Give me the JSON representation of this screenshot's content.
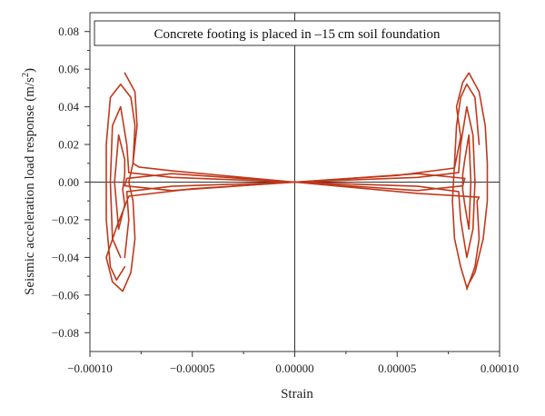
{
  "chart_data": {
    "type": "line",
    "title": "Concrete footing is placed in –15 cm soil foundation",
    "xlabel": "Strain",
    "ylabel_main": "Seismic acceleration load response (m/s",
    "ylabel_exp": "2",
    "ylabel_close": ")",
    "xlim": [
      -0.0001,
      0.0001
    ],
    "ylim": [
      -0.09,
      0.09
    ],
    "x_ticks": [
      -0.0001,
      -5e-05,
      0,
      5e-05,
      0.0001
    ],
    "x_tick_labels": [
      "−0.00010",
      "−0.00005",
      "0.00000",
      "0.00005",
      "0.00010"
    ],
    "y_ticks": [
      0.08,
      0.06,
      0.04,
      0.02,
      0.0,
      -0.02,
      -0.04,
      -0.06,
      -0.08
    ],
    "y_tick_labels": [
      "0.08",
      "0.06",
      "0.04",
      "0.02",
      "0.00",
      "−0.02",
      "−0.04",
      "−0.06",
      "−0.08"
    ],
    "grid": false,
    "zero_lines": true,
    "line_color": "#c0391b",
    "series": [
      {
        "values": [
          [
            0,
            0
          ],
          [
            -5e-05,
            -0.0035
          ],
          [
            -8.1e-05,
            -0.0075
          ],
          [
            -8.7e-05,
            -0.024
          ],
          [
            -9.2e-05,
            -0.04
          ],
          [
            -8.9e-05,
            -0.053
          ],
          [
            -8.4e-05,
            -0.058
          ],
          [
            -8e-05,
            -0.048
          ],
          [
            -7.8e-05,
            -0.03
          ],
          [
            -7.9e-05,
            -0.01
          ],
          [
            -8.1e-05,
            0
          ],
          [
            -7.9e-05,
            0.01
          ],
          [
            -7.8e-05,
            0.03
          ],
          [
            -8e-05,
            0.045
          ],
          [
            -8.5e-05,
            0.052
          ],
          [
            -9e-05,
            0.045
          ],
          [
            -9.2e-05,
            0.02
          ],
          [
            -9.2e-05,
            -0.02
          ],
          [
            -9e-05,
            -0.045
          ],
          [
            -8.7e-05,
            -0.052
          ],
          [
            -8.3e-05,
            -0.045
          ]
        ]
      },
      {
        "values": [
          [
            -8.3e-05,
            -0.04
          ],
          [
            -8.1e-05,
            -0.02
          ],
          [
            -8.2e-05,
            -0.005
          ],
          [
            -6e-05,
            -0.0022
          ],
          [
            0,
            0
          ],
          [
            -6e-05,
            0.0025
          ],
          [
            -8.1e-05,
            0.005
          ],
          [
            -8.2e-05,
            0.02
          ],
          [
            -8.5e-05,
            0.04
          ],
          [
            -8.9e-05,
            0.03
          ],
          [
            -9e-05,
            0
          ],
          [
            -8.9e-05,
            -0.03
          ],
          [
            -8.5e-05,
            -0.04
          ]
        ]
      },
      {
        "values": [
          [
            -8.3e-05,
            0.058
          ],
          [
            -7.8e-05,
            0.048
          ],
          [
            -7.7e-05,
            0.03
          ],
          [
            -7.9e-05,
            0.01
          ],
          [
            -7.6e-05,
            0.008
          ],
          [
            -6e-05,
            0.006
          ],
          [
            0,
            0
          ],
          [
            -6e-05,
            0.0045
          ],
          [
            -8.2e-05,
            0.002
          ],
          [
            -8.3e-05,
            -0.002
          ],
          [
            -6e-05,
            -0.0045
          ],
          [
            0,
            0
          ]
        ]
      },
      {
        "values": [
          [
            -8.6e-05,
            0.025
          ],
          [
            -8.3e-05,
            0.012
          ],
          [
            -8.3e-05,
            0.004
          ],
          [
            -8.4e-05,
            -0.004
          ],
          [
            -8.3e-05,
            -0.012
          ],
          [
            -8.6e-05,
            -0.025
          ],
          [
            -8.8e-05,
            0
          ],
          [
            -8.6e-05,
            0.025
          ]
        ]
      },
      {
        "values": [
          [
            0,
            0
          ],
          [
            5e-05,
            0.0035
          ],
          [
            7.8e-05,
            0.0075
          ],
          [
            8.1e-05,
            0.024
          ],
          [
            7.9e-05,
            0.04
          ],
          [
            8.2e-05,
            0.053
          ],
          [
            8.5e-05,
            0.058
          ],
          [
            9e-05,
            0.048
          ],
          [
            9.3e-05,
            0.03
          ],
          [
            9.4e-05,
            0.01
          ],
          [
            9.4e-05,
            -0.01
          ],
          [
            9.2e-05,
            -0.03
          ],
          [
            8.8e-05,
            -0.048
          ],
          [
            8.4e-05,
            -0.056
          ],
          [
            8.1e-05,
            -0.045
          ],
          [
            7.8e-05,
            -0.03
          ],
          [
            7.7e-05,
            -0.01
          ],
          [
            7.8e-05,
            0.01
          ],
          [
            7.9e-05,
            0.03
          ],
          [
            8.1e-05,
            0.045
          ],
          [
            8.4e-05,
            0.052
          ],
          [
            8.8e-05,
            0.045
          ],
          [
            9e-05,
            0.02
          ]
        ]
      },
      {
        "values": [
          [
            8.4e-05,
            0.04
          ],
          [
            8.7e-05,
            0.025
          ],
          [
            8.8e-05,
            0
          ],
          [
            8.7e-05,
            -0.025
          ],
          [
            8.4e-05,
            -0.04
          ],
          [
            8.1e-05,
            -0.02
          ],
          [
            8e-05,
            -0.005
          ],
          [
            6e-05,
            -0.0022
          ],
          [
            0,
            0
          ],
          [
            6e-05,
            0.0025
          ],
          [
            8e-05,
            0.005
          ],
          [
            8.1e-05,
            0.02
          ],
          [
            8.4e-05,
            0.04
          ]
        ]
      },
      {
        "values": [
          [
            8.4e-05,
            -0.057
          ],
          [
            8.8e-05,
            -0.045
          ],
          [
            9e-05,
            -0.03
          ],
          [
            8.9e-05,
            -0.01
          ],
          [
            9e-05,
            -0.008
          ],
          [
            6e-05,
            -0.006
          ],
          [
            0,
            0
          ],
          [
            6e-05,
            -0.0045
          ],
          [
            8.2e-05,
            -0.002
          ],
          [
            8.3e-05,
            0.002
          ],
          [
            6e-05,
            0.0045
          ],
          [
            0,
            0
          ]
        ]
      },
      {
        "values": [
          [
            8.5e-05,
            0.025
          ],
          [
            8.3e-05,
            0.012
          ],
          [
            8.2e-05,
            0.004
          ],
          [
            8.2e-05,
            -0.004
          ],
          [
            8.3e-05,
            -0.012
          ],
          [
            8.5e-05,
            -0.025
          ],
          [
            8.6e-05,
            0
          ],
          [
            8.5e-05,
            0.025
          ]
        ]
      }
    ]
  }
}
